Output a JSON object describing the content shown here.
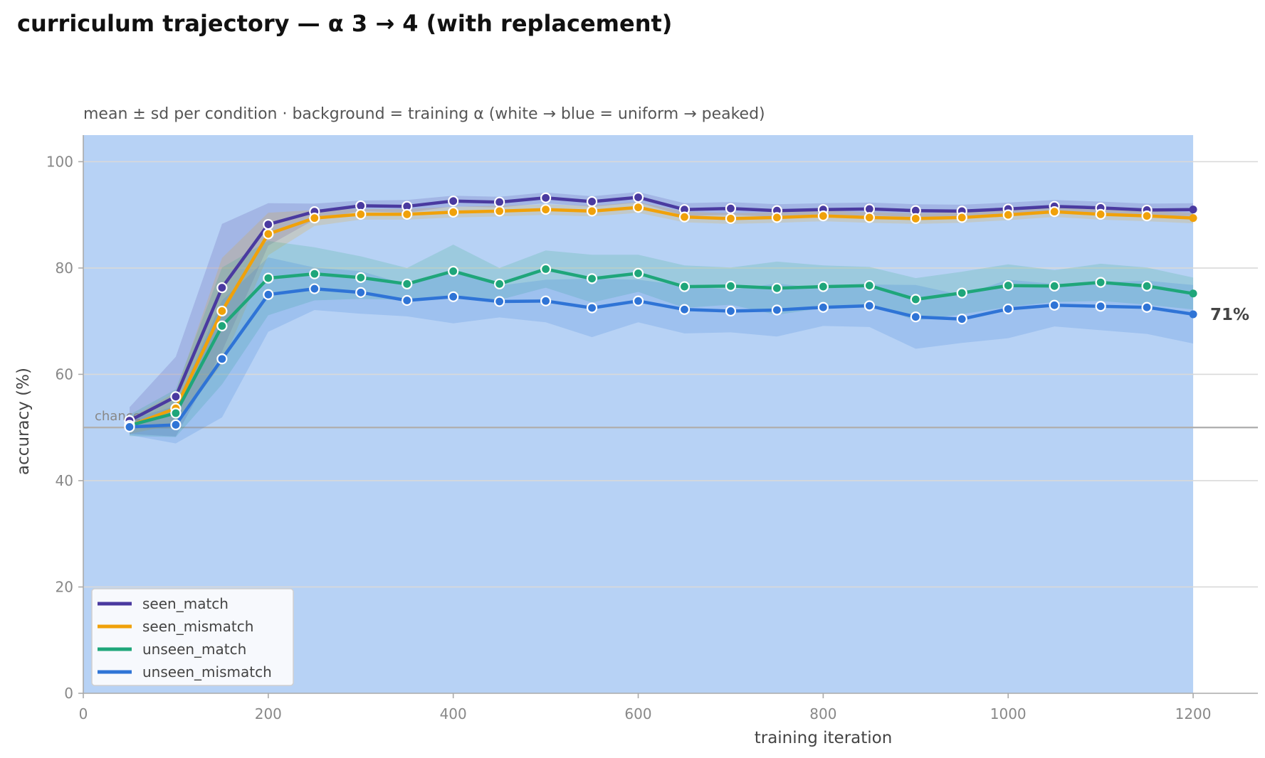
{
  "chart_data": {
    "type": "line",
    "title": "curriculum trajectory — α 3 → 4 (with replacement)",
    "subtitle": "mean ± sd per condition · background = training α (white → blue = uniform → peaked)",
    "xlabel": "training iteration",
    "ylabel": "accuracy (%)",
    "xlim": [
      0,
      1270
    ],
    "ylim": [
      0,
      105
    ],
    "x_ticks": [
      0,
      200,
      400,
      600,
      800,
      1000,
      1200
    ],
    "y_ticks": [
      0,
      20,
      40,
      60,
      80,
      100
    ],
    "grid": "horizontal",
    "legend_position": "bottom-left",
    "background": {
      "color": "#b7d2f5",
      "x_range": [
        0,
        1200
      ]
    },
    "reference_line": {
      "label": "chance",
      "y": 50
    },
    "end_label": "71%",
    "x": [
      50,
      100,
      150,
      200,
      250,
      300,
      350,
      400,
      450,
      500,
      550,
      600,
      650,
      700,
      750,
      800,
      850,
      900,
      950,
      1000,
      1050,
      1100,
      1150,
      1200
    ],
    "series": [
      {
        "name": "seen_match",
        "color": "#4a3aa0",
        "values": [
          51.3,
          55.8,
          76.3,
          88.2,
          90.6,
          91.7,
          91.6,
          92.6,
          92.4,
          93.2,
          92.5,
          93.3,
          91.0,
          91.2,
          90.8,
          91.0,
          91.1,
          90.8,
          90.7,
          91.1,
          91.6,
          91.3,
          90.9,
          91.0
        ],
        "sd": [
          2.5,
          7.5,
          12.0,
          4.0,
          1.5,
          1.0,
          1.2,
          1.0,
          1.0,
          1.0,
          1.0,
          1.0,
          1.2,
          1.2,
          1.2,
          1.2,
          1.2,
          1.2,
          1.2,
          1.2,
          1.2,
          1.2,
          1.2,
          1.2
        ]
      },
      {
        "name": "seen_mismatch",
        "color": "#f0a10a",
        "values": [
          50.3,
          53.6,
          71.9,
          86.4,
          89.4,
          90.1,
          90.1,
          90.5,
          90.7,
          91.0,
          90.7,
          91.4,
          89.6,
          89.3,
          89.5,
          89.8,
          89.5,
          89.3,
          89.5,
          90.0,
          90.6,
          90.1,
          89.8,
          89.4
        ],
        "sd": [
          1.5,
          3.0,
          10.0,
          4.0,
          1.5,
          1.0,
          1.0,
          1.0,
          1.0,
          1.0,
          1.0,
          1.0,
          1.0,
          1.0,
          1.0,
          1.0,
          1.0,
          1.0,
          1.0,
          1.0,
          1.0,
          1.0,
          1.0,
          1.0
        ]
      },
      {
        "name": "unseen_match",
        "color": "#1fa67a",
        "values": [
          50.4,
          52.7,
          69.1,
          78.1,
          78.9,
          78.2,
          77.0,
          79.4,
          77.0,
          79.8,
          78.0,
          79.0,
          76.5,
          76.6,
          76.2,
          76.5,
          76.7,
          74.1,
          75.3,
          76.7,
          76.6,
          77.3,
          76.6,
          75.2
        ],
        "sd": [
          2.0,
          4.5,
          11.0,
          7.0,
          5.0,
          4.0,
          3.0,
          5.0,
          3.0,
          3.5,
          4.5,
          3.5,
          4.0,
          3.5,
          5.0,
          4.0,
          3.5,
          4.0,
          4.0,
          4.0,
          3.0,
          3.5,
          3.5,
          3.0
        ]
      },
      {
        "name": "unseen_mismatch",
        "color": "#2f74d6",
        "values": [
          50.1,
          50.5,
          62.9,
          75.0,
          76.1,
          75.4,
          73.9,
          74.6,
          73.7,
          73.8,
          72.5,
          73.8,
          72.2,
          71.9,
          72.1,
          72.6,
          72.9,
          70.8,
          70.4,
          72.3,
          73.0,
          72.8,
          72.6,
          71.3
        ],
        "sd": [
          1.5,
          3.5,
          11.0,
          7.0,
          4.0,
          4.0,
          3.0,
          5.0,
          3.0,
          4.0,
          5.5,
          4.0,
          4.5,
          4.0,
          5.0,
          3.5,
          4.0,
          6.0,
          4.5,
          5.5,
          4.0,
          4.5,
          5.0,
          5.5
        ]
      }
    ]
  }
}
